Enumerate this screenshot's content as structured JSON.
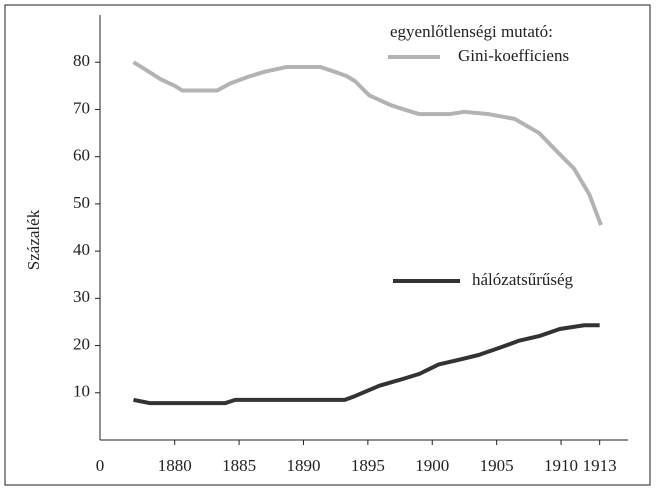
{
  "chart_data": {
    "type": "line",
    "ylabel": "Százalék",
    "annotation": "egyenlőtlenségi mutató:",
    "xlim": [
      1874.2,
      1915.2
    ],
    "xticks": [
      1880,
      1885,
      1890,
      1895,
      1900,
      1905,
      1910,
      1913
    ],
    "ylim": [
      0,
      90
    ],
    "yticks": [
      0,
      10,
      20,
      30,
      40,
      50,
      60,
      70,
      80
    ],
    "grid": false,
    "series": [
      {
        "name": "Gini-koefficiens",
        "color": "#b3b3b3",
        "x": [
          1876.8,
          1877.7,
          1878.9,
          1880,
          1880.6,
          1883.3,
          1884.3,
          1885.8,
          1887,
          1888.7,
          1891.3,
          1892.4,
          1893.4,
          1894,
          1895.1,
          1896.7,
          1897.8,
          1899,
          1901.3,
          1902.5,
          1904.4,
          1906.4,
          1908.3,
          1909.9,
          1911,
          1912.2,
          1913.1
        ],
        "values": [
          80,
          78.5,
          76.4,
          75,
          74,
          74,
          75.5,
          77,
          78,
          79,
          79,
          78,
          77,
          76,
          73,
          71,
          70,
          69,
          69,
          69.5,
          69,
          68,
          65,
          60.5,
          57.5,
          52,
          45.5
        ]
      },
      {
        "name": "hálózatsűrűség",
        "color": "#333333",
        "x": [
          1876.8,
          1878.1,
          1883.9,
          1884.7,
          1893.2,
          1894,
          1895.9,
          1897.8,
          1899,
          1900.5,
          1902.1,
          1903.6,
          1905.2,
          1906.7,
          1908.3,
          1909.9,
          1911.8,
          1913
        ],
        "values": [
          8.5,
          7.8,
          7.8,
          8.5,
          8.5,
          9.3,
          11.5,
          13,
          14,
          16,
          17,
          18,
          19.5,
          21,
          22,
          23.5,
          24.3,
          24.3
        ]
      }
    ]
  }
}
